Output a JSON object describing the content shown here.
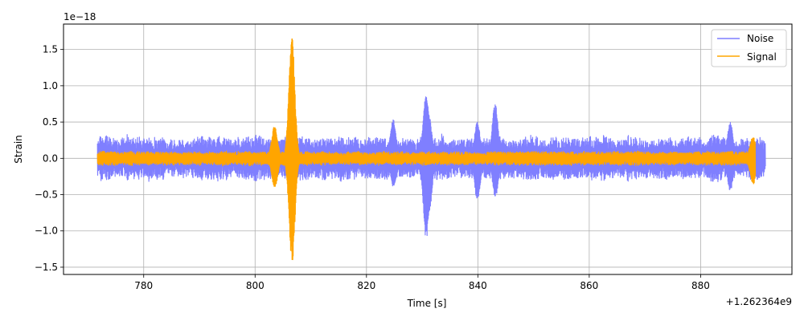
{
  "chart_data": {
    "type": "line",
    "title": "",
    "xlabel": "Time [s]",
    "ylabel": "Strain",
    "y_scale_label": "1e−18",
    "x_offset_label": "+1.262364e9",
    "xlim": [
      765.6,
      896.4
    ],
    "ylim": [
      -1.6,
      1.85
    ],
    "x_ticks": [
      780,
      800,
      820,
      840,
      860,
      880
    ],
    "x_tick_labels": [
      "780",
      "800",
      "820",
      "840",
      "860",
      "880"
    ],
    "y_ticks": [
      -1.5,
      -1.0,
      -0.5,
      0.0,
      0.5,
      1.0,
      1.5
    ],
    "y_tick_labels": [
      "−1.5",
      "−1.0",
      "−0.5",
      "0.0",
      "0.5",
      "1.0",
      "1.5"
    ],
    "grid": true,
    "legend_position": "top-right",
    "series": [
      {
        "name": "Noise",
        "color": "#7f7fff",
        "x_range": [
          771.7,
          891.6
        ],
        "base_amplitude": 0.22,
        "events": [
          {
            "x": 830.7,
            "peak_high": 0.88,
            "peak_low": -1.13
          },
          {
            "x": 831.2,
            "peak_high": 0.6,
            "peak_low": -0.78
          },
          {
            "x": 843.1,
            "peak_high": 0.75,
            "peak_low": -0.55
          },
          {
            "x": 824.8,
            "peak_high": 0.55,
            "peak_low": -0.4
          },
          {
            "x": 839.9,
            "peak_high": 0.5,
            "peak_low": -0.6
          },
          {
            "x": 885.3,
            "peak_high": 0.5,
            "peak_low": -0.45
          },
          {
            "x": 806.7,
            "peak_high": 0.45,
            "peak_low": -0.55
          }
        ]
      },
      {
        "name": "Signal",
        "color": "#ffa500",
        "x_range": [
          771.7,
          889.8
        ],
        "base_amplitude": 0.07,
        "events": [
          {
            "x": 803.5,
            "peak_high": 0.45,
            "peak_low": -0.42
          },
          {
            "x": 806.6,
            "peak_high": 1.7,
            "peak_low": -1.45
          },
          {
            "x": 889.4,
            "peak_high": 0.3,
            "peak_low": -0.36
          }
        ]
      }
    ]
  }
}
